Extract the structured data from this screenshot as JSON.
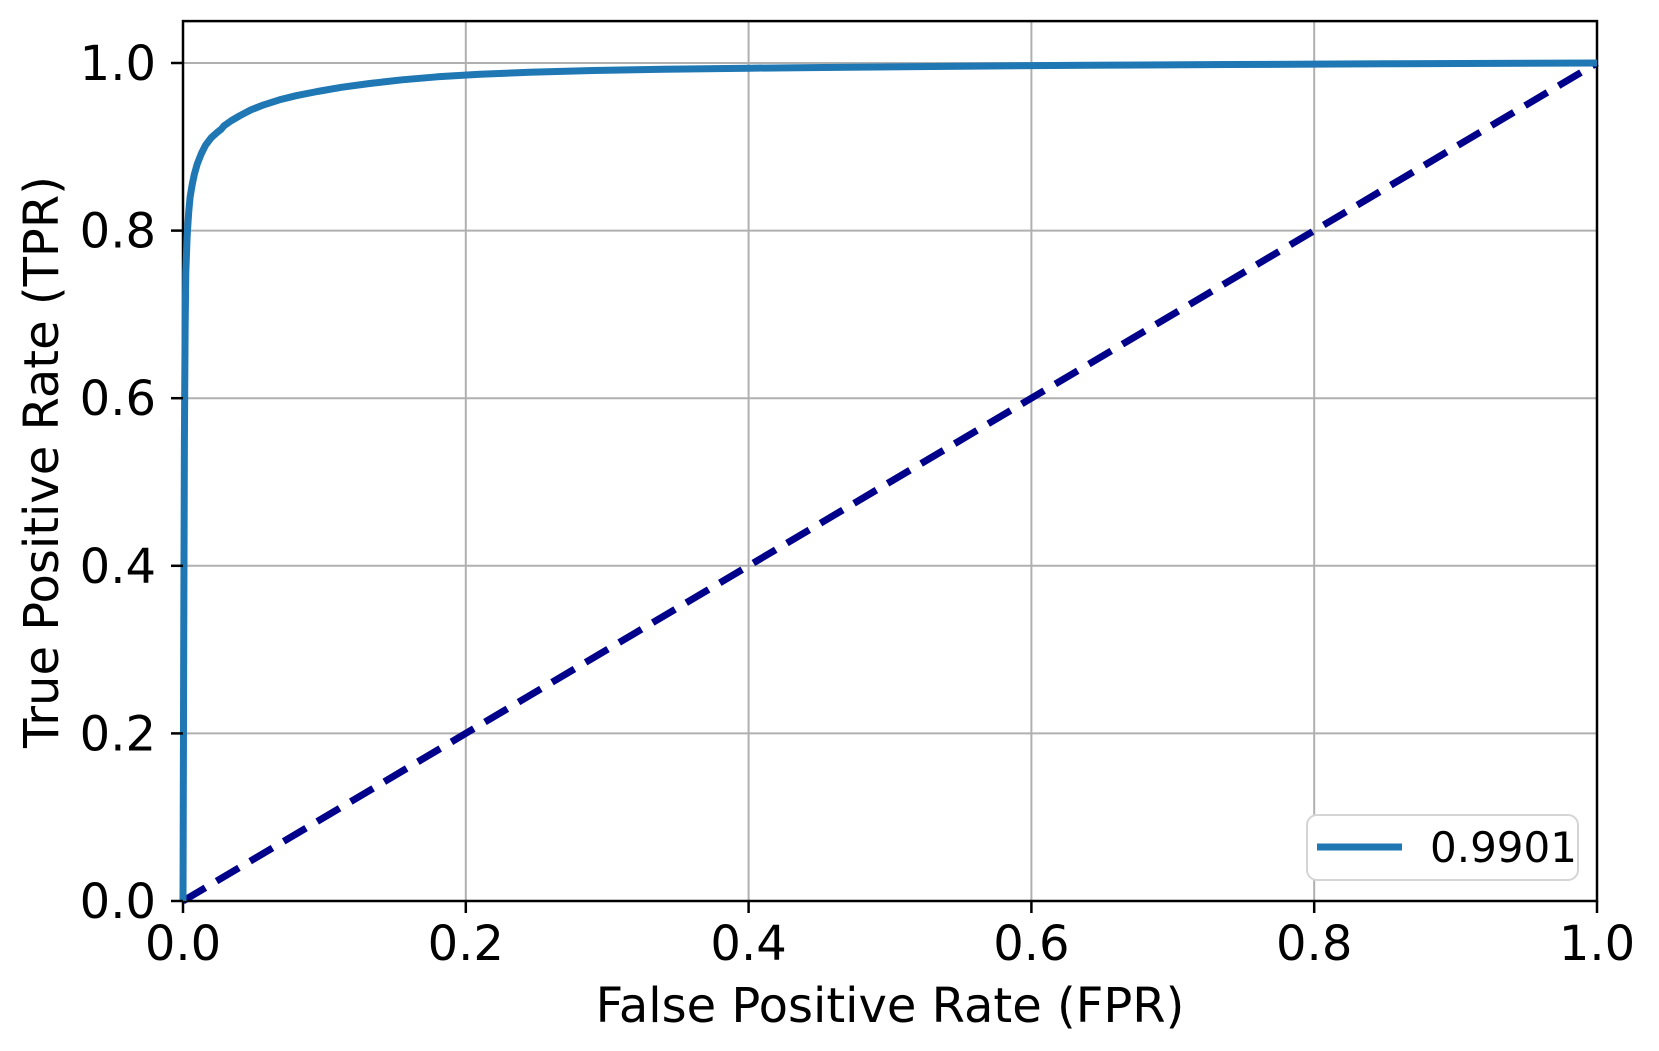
{
  "chart_data": {
    "type": "line",
    "title": "",
    "xlabel": "False Positive Rate (FPR)",
    "ylabel": "True Positive Rate (TPR)",
    "xlim": [
      0.0,
      1.0
    ],
    "ylim": [
      0.0,
      1.05
    ],
    "xticks": [
      0.0,
      0.2,
      0.4,
      0.6,
      0.8,
      1.0
    ],
    "yticks": [
      0.0,
      0.2,
      0.4,
      0.6,
      0.8,
      1.0
    ],
    "xtick_labels": [
      "0.0",
      "0.2",
      "0.4",
      "0.6",
      "0.8",
      "1.0"
    ],
    "ytick_labels": [
      "0.0",
      "0.2",
      "0.4",
      "0.6",
      "0.8",
      "1.0"
    ],
    "grid": true,
    "legend": {
      "position": "lower right",
      "entries": [
        {
          "label": "0.9901",
          "color": "#1f77b4",
          "line_style": "solid"
        }
      ]
    },
    "series": [
      {
        "name": "roc-curve",
        "color": "#1f77b4",
        "line_style": "solid",
        "points": [
          [
            0.0,
            0.0
          ],
          [
            0.0005,
            0.3
          ],
          [
            0.001,
            0.55
          ],
          [
            0.0015,
            0.68
          ],
          [
            0.002,
            0.75
          ],
          [
            0.003,
            0.795
          ],
          [
            0.004,
            0.822
          ],
          [
            0.005,
            0.84
          ],
          [
            0.0065,
            0.855
          ],
          [
            0.008,
            0.867
          ],
          [
            0.01,
            0.879
          ],
          [
            0.013,
            0.892
          ],
          [
            0.016,
            0.902
          ],
          [
            0.02,
            0.911
          ],
          [
            0.024,
            0.917
          ],
          [
            0.027,
            0.921
          ],
          [
            0.029,
            0.925
          ],
          [
            0.034,
            0.931
          ],
          [
            0.04,
            0.937
          ],
          [
            0.048,
            0.944
          ],
          [
            0.057,
            0.95
          ],
          [
            0.068,
            0.956
          ],
          [
            0.08,
            0.961
          ],
          [
            0.095,
            0.966
          ],
          [
            0.112,
            0.971
          ],
          [
            0.132,
            0.9755
          ],
          [
            0.155,
            0.98
          ],
          [
            0.18,
            0.9835
          ],
          [
            0.21,
            0.9865
          ],
          [
            0.245,
            0.989
          ],
          [
            0.29,
            0.991
          ],
          [
            0.34,
            0.9925
          ],
          [
            0.4,
            0.9938
          ],
          [
            0.47,
            0.995
          ],
          [
            0.55,
            0.9962
          ],
          [
            0.64,
            0.9972
          ],
          [
            0.74,
            0.9982
          ],
          [
            0.85,
            0.999
          ],
          [
            1.0,
            1.0
          ]
        ]
      },
      {
        "name": "chance-diagonal",
        "color": "#00008b",
        "line_style": "dashed",
        "points": [
          [
            0.0,
            0.0
          ],
          [
            1.0,
            1.0
          ]
        ]
      }
    ],
    "colors": {
      "roc_curve": "#1f77b4",
      "diagonal": "#00008b",
      "grid": "#b0b0b0",
      "axis": "#000000",
      "legend_border": "#d5d5d5",
      "background": "#ffffff"
    }
  }
}
